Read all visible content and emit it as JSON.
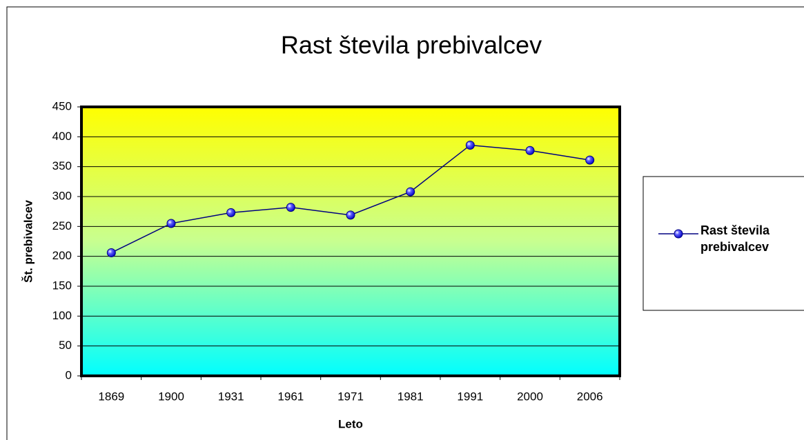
{
  "chart_data": {
    "type": "line",
    "title": "Rast števila prebivalcev",
    "x_label": "Leto",
    "y_label": "Št. prebivalcev",
    "categories": [
      "1869",
      "1900",
      "1931",
      "1961",
      "1971",
      "1981",
      "1991",
      "2000",
      "2006"
    ],
    "series": [
      {
        "name": "Rast števila prebivalcev",
        "color": "#000080",
        "values": [
          206,
          255,
          273,
          282,
          269,
          308,
          386,
          377,
          361
        ]
      }
    ],
    "ylim": [
      0,
      450
    ],
    "yticks": [
      0,
      50,
      100,
      150,
      200,
      250,
      300,
      350,
      400,
      450
    ],
    "grid": true,
    "legend": "right"
  }
}
